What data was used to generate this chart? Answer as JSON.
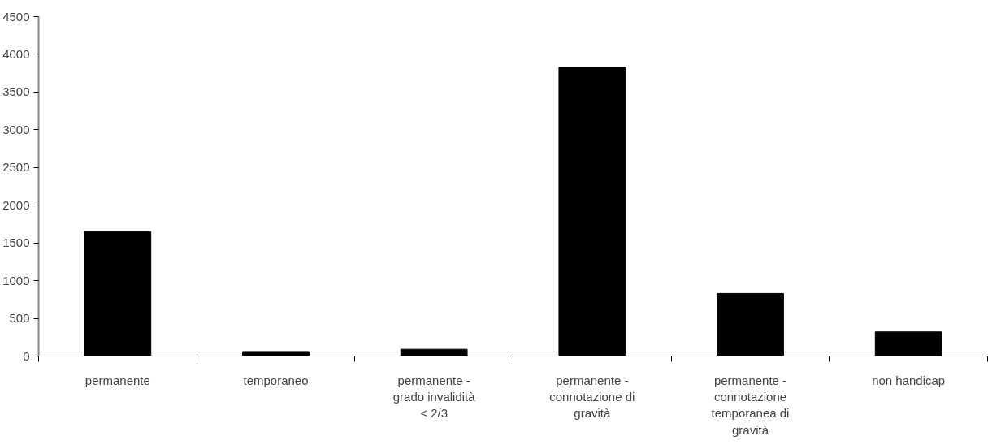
{
  "chart_data": {
    "type": "bar",
    "categories": [
      "permanente",
      "temporaneo",
      "permanente - grado invalidità < 2/3",
      "permanente - connotazione di gravità",
      "permanente - connotazione temporanea di gravità",
      "non handicap"
    ],
    "values": [
      1650,
      60,
      90,
      3830,
      830,
      320
    ],
    "color": "#000000",
    "ylim": [
      0,
      4500
    ],
    "yticks": [
      0,
      500,
      1000,
      1500,
      2000,
      2500,
      3000,
      3500,
      4000,
      4500
    ],
    "grid": false
  }
}
